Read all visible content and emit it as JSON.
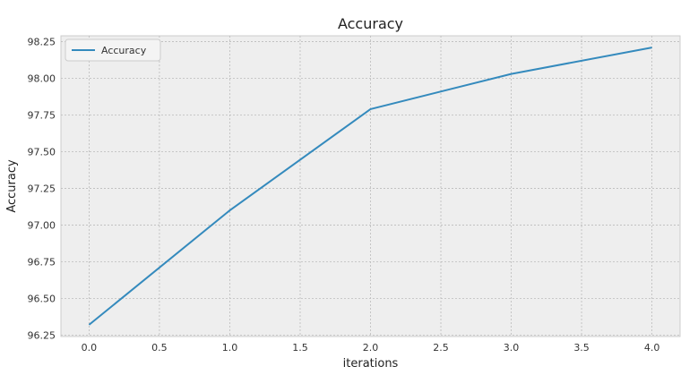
{
  "chart_data": {
    "type": "line",
    "title": "Accuracy",
    "xlabel": "iterations",
    "ylabel": "Accuracy",
    "x": [
      0,
      1,
      2,
      3,
      4
    ],
    "series": [
      {
        "name": "Accuracy",
        "values": [
          96.32,
          97.1,
          97.79,
          98.03,
          98.21
        ],
        "color": "#348ABD"
      }
    ],
    "xlim": [
      -0.2,
      4.2
    ],
    "ylim": [
      96.24,
      98.29
    ],
    "xticks": [
      0.0,
      0.5,
      1.0,
      1.5,
      2.0,
      2.5,
      3.0,
      3.5,
      4.0
    ],
    "xtick_labels": [
      "0.0",
      "0.5",
      "1.0",
      "1.5",
      "2.0",
      "2.5",
      "3.0",
      "3.5",
      "4.0"
    ],
    "yticks": [
      96.25,
      96.5,
      96.75,
      97.0,
      97.25,
      97.5,
      97.75,
      98.0,
      98.25
    ],
    "ytick_labels": [
      "96.25",
      "96.50",
      "96.75",
      "97.00",
      "97.25",
      "97.50",
      "97.75",
      "98.00",
      "98.25"
    ],
    "grid": true,
    "legend": "upper-left",
    "background": "#EEEEEE",
    "grid_color": "#BBBBBB"
  }
}
